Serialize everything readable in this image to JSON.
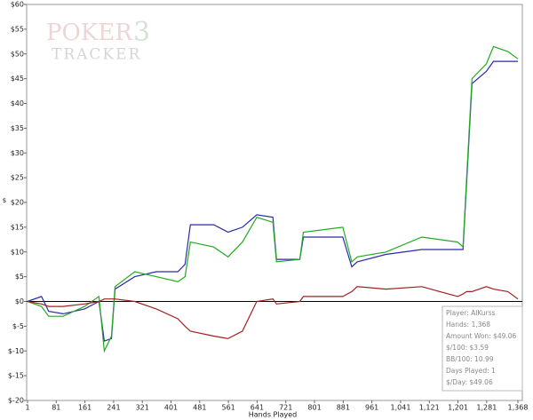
{
  "chart_data": {
    "type": "line",
    "watermark": [
      "POKER",
      "3",
      "TRACKER"
    ],
    "xlabel": "Hands Played",
    "ylabel": "$",
    "x": [
      1,
      40,
      60,
      100,
      160,
      200,
      215,
      235,
      245,
      300,
      360,
      420,
      440,
      455,
      520,
      560,
      600,
      640,
      685,
      695,
      760,
      770,
      880,
      905,
      920,
      1000,
      1100,
      1200,
      1215,
      1225,
      1240,
      1280,
      1300,
      1340,
      1368
    ],
    "series": [
      {
        "color": "#2a2aa8",
        "values": [
          0,
          1,
          -2,
          -2.5,
          -1.5,
          0,
          -8,
          -7.5,
          2.5,
          5,
          6,
          6,
          7.5,
          15.5,
          15.5,
          14,
          15,
          17.5,
          17,
          8.5,
          8.5,
          13,
          13,
          7,
          8,
          9.5,
          10.5,
          10.5,
          10.5,
          24,
          44,
          46.5,
          48.5,
          48.5,
          48.5
        ]
      },
      {
        "color": "#22aa22",
        "values": [
          0,
          -1,
          -3,
          -3,
          -1,
          1,
          -10,
          -7,
          3,
          6,
          5,
          4,
          5,
          12,
          11,
          9,
          12,
          17,
          16,
          8,
          8.5,
          14,
          15,
          8,
          9,
          10,
          13,
          12,
          11,
          25,
          45,
          48,
          51.5,
          50.5,
          49
        ]
      },
      {
        "color": "#a02020",
        "values": [
          0,
          -0.5,
          -1,
          -1,
          -0.5,
          0,
          0.5,
          0.5,
          0.5,
          0,
          -1.5,
          -3.5,
          -5,
          -6,
          -7,
          -7.5,
          -6,
          0,
          0.5,
          -0.5,
          0,
          1,
          1,
          2,
          3,
          2.5,
          3,
          1,
          1.5,
          2,
          2,
          3,
          2.5,
          2,
          0.5
        ]
      }
    ],
    "xlim": [
      1,
      1368
    ],
    "xticks": [
      1,
      81,
      161,
      241,
      321,
      401,
      481,
      561,
      641,
      721,
      801,
      881,
      961,
      {
        "value": 1041,
        "label": "1,041"
      },
      {
        "value": 1121,
        "label": "1,121"
      },
      {
        "value": 1201,
        "label": "1,201"
      },
      {
        "value": 1281,
        "label": "1,281"
      },
      {
        "value": 1368,
        "label": "1,368"
      }
    ],
    "ylim": [
      -20,
      60
    ],
    "yticks": [
      {
        "value": 60,
        "label": "$60"
      },
      {
        "value": 55,
        "label": "$55"
      },
      {
        "value": 50,
        "label": "$50"
      },
      {
        "value": 45,
        "label": "$45"
      },
      {
        "value": 40,
        "label": "$40"
      },
      {
        "value": 35,
        "label": "$35"
      },
      {
        "value": 30,
        "label": "$30"
      },
      {
        "value": 25,
        "label": "$25"
      },
      {
        "value": 20,
        "label": "$20"
      },
      {
        "value": 15,
        "label": "$15"
      },
      {
        "value": 10,
        "label": "$10"
      },
      {
        "value": 5,
        "label": "$5"
      },
      {
        "value": 0,
        "label": "$0"
      },
      {
        "value": -5,
        "label": "$-5"
      },
      {
        "value": -10,
        "label": "$-10"
      },
      {
        "value": -15,
        "label": "$-15"
      },
      {
        "value": -20,
        "label": "$-20"
      }
    ],
    "zero_line": true,
    "info_box": [
      "Player: AlKurss",
      "Hands: 1,368",
      "Amount Won: $49.06",
      "$/100: $3.59",
      "BB/100: 10.99",
      "Days Played: 1",
      "$/Day: $49.06"
    ]
  }
}
